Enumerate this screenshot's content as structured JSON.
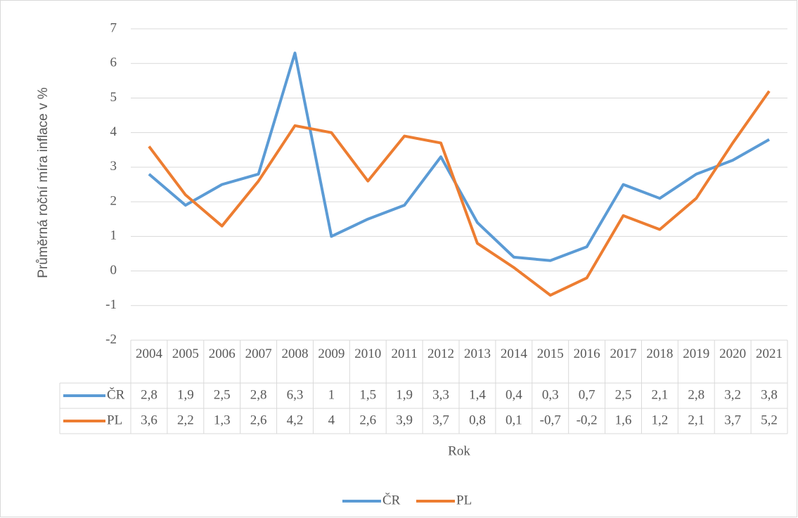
{
  "chart_data": {
    "type": "line",
    "y_label": "Průměrná roční míra inflace v %",
    "x_label": "Rok",
    "categories": [
      "2004",
      "2005",
      "2006",
      "2007",
      "2008",
      "2009",
      "2010",
      "2011",
      "2012",
      "2013",
      "2014",
      "2015",
      "2016",
      "2017",
      "2018",
      "2019",
      "2020",
      "2021"
    ],
    "series": [
      {
        "name": "ČR",
        "color": "#5b9bd5",
        "values": [
          2.8,
          1.9,
          2.5,
          2.8,
          6.3,
          1,
          1.5,
          1.9,
          3.3,
          1.4,
          0.4,
          0.3,
          0.7,
          2.5,
          2.1,
          2.8,
          3.2,
          3.8
        ],
        "value_labels": [
          "2,8",
          "1,9",
          "2,5",
          "2,8",
          "6,3",
          "1",
          "1,5",
          "1,9",
          "3,3",
          "1,4",
          "0,4",
          "0,3",
          "0,7",
          "2,5",
          "2,1",
          "2,8",
          "3,2",
          "3,8"
        ]
      },
      {
        "name": "PL",
        "color": "#ed7d31",
        "values": [
          3.6,
          2.2,
          1.3,
          2.6,
          4.2,
          4,
          2.6,
          3.9,
          3.7,
          0.8,
          0.1,
          -0.7,
          -0.2,
          1.6,
          1.2,
          2.1,
          3.7,
          5.2
        ],
        "value_labels": [
          "3,6",
          "2,2",
          "1,3",
          "2,6",
          "4,2",
          "4",
          "2,6",
          "3,9",
          "3,7",
          "0,8",
          "0,1",
          "-0,7",
          "-0,2",
          "1,6",
          "1,2",
          "2,1",
          "3,7",
          "5,2"
        ]
      }
    ],
    "ylim": [
      -2,
      7
    ],
    "yticks": [
      7,
      6,
      5,
      4,
      3,
      2,
      1,
      0,
      -1,
      -2
    ],
    "grid": true,
    "legend": "bottom"
  }
}
